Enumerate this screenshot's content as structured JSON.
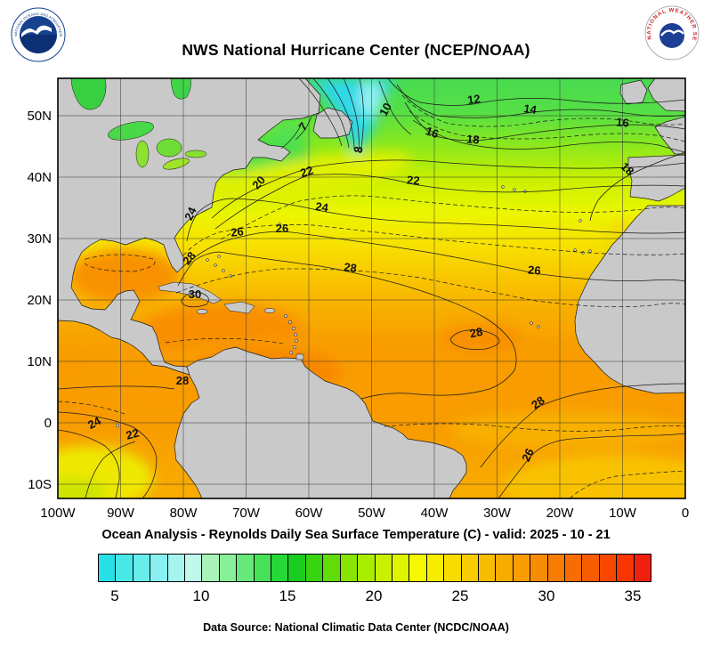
{
  "header": {
    "title": "NWS National Hurricane Center (NCEP/NOAA)",
    "noaa_logo": {
      "rim_top": "NATIONAL OCEANIC AND ATMOSPHERIC ADMINISTRATION",
      "rim_bottom": "U.S. DEPARTMENT OF COMMERCE"
    },
    "nws_logo": {
      "text": "NATIONAL WEATHER SERVICE"
    }
  },
  "map": {
    "lat_labels": [
      "50N",
      "40N",
      "30N",
      "20N",
      "10N",
      "0",
      "10S"
    ],
    "lon_labels": [
      "100W",
      "90W",
      "80W",
      "70W",
      "60W",
      "50W",
      "40W",
      "30W",
      "20W",
      "10W",
      "0"
    ],
    "contour_labels": [
      "10",
      "12",
      "14",
      "16",
      "16",
      "18",
      "18",
      "7",
      "8",
      "22",
      "20",
      "22",
      "24",
      "24",
      "26",
      "26",
      "28",
      "28",
      "26",
      "30",
      "28",
      "28",
      "28",
      "24",
      "22",
      "26"
    ]
  },
  "subtitle": "Ocean Analysis - Reynolds Daily Sea Surface Temperature (C) - valid: 2025 - 10 - 21",
  "colorbar": {
    "ticks": [
      "5",
      "10",
      "15",
      "20",
      "25",
      "30",
      "35"
    ],
    "colors": [
      "#28e0e8",
      "#48e8e8",
      "#68ecec",
      "#88f0f0",
      "#a4f4f0",
      "#c0f8ec",
      "#a8f4b8",
      "#88f098",
      "#68e878",
      "#48e058",
      "#28d838",
      "#18cc20",
      "#38d410",
      "#60dc08",
      "#88e400",
      "#a8ec00",
      "#c8f000",
      "#e0f400",
      "#f4f800",
      "#f8ec00",
      "#f8dc00",
      "#f8cc00",
      "#f8bc00",
      "#f8ac00",
      "#f89c00",
      "#f88c00",
      "#f87c00",
      "#f86c00",
      "#f85c00",
      "#f84800",
      "#f83400",
      "#f02010"
    ]
  },
  "footer": "Data Source: National Climatic Data Center (NCDC/NOAA)",
  "colors": {
    "land": "#c9c9c9",
    "grid": "#333333",
    "contour": "#1c1c1c",
    "cold_water": "#2fd8e6",
    "warm_water": "#f89c00",
    "nws_red": "#cc2222",
    "noaa_blue": "#15418f"
  }
}
